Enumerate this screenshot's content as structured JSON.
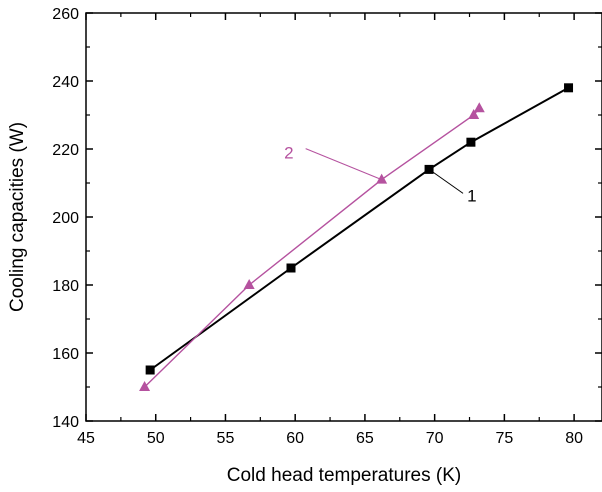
{
  "chart_data": {
    "type": "line",
    "title": "",
    "xlabel": "Cold head temperatures (K)",
    "ylabel": "Cooling capacities (W)",
    "xlim": [
      45,
      82
    ],
    "ylim": [
      140,
      260
    ],
    "x_ticks": [
      "45",
      "50",
      "55",
      "60",
      "65",
      "70",
      "75",
      "80"
    ],
    "y_ticks": [
      "140",
      "160",
      "180",
      "200",
      "220",
      "240",
      "260"
    ],
    "grid": false,
    "series": [
      {
        "name": "1",
        "color": "#000000",
        "marker": "square",
        "x": [
          49.6,
          59.7,
          69.6,
          72.6,
          79.6
        ],
        "y": [
          155,
          185,
          214,
          222,
          238
        ]
      },
      {
        "name": "2",
        "color": "#b5529f",
        "marker": "triangle",
        "x": [
          49.2,
          56.7,
          66.2,
          72.8,
          73.2
        ],
        "y": [
          150,
          180,
          211,
          230,
          232
        ]
      }
    ],
    "annotations": [
      {
        "text": "1",
        "series": 0,
        "point": [
          69.6,
          214
        ]
      },
      {
        "text": "2",
        "series": 1,
        "point": [
          66.2,
          211
        ]
      }
    ]
  }
}
